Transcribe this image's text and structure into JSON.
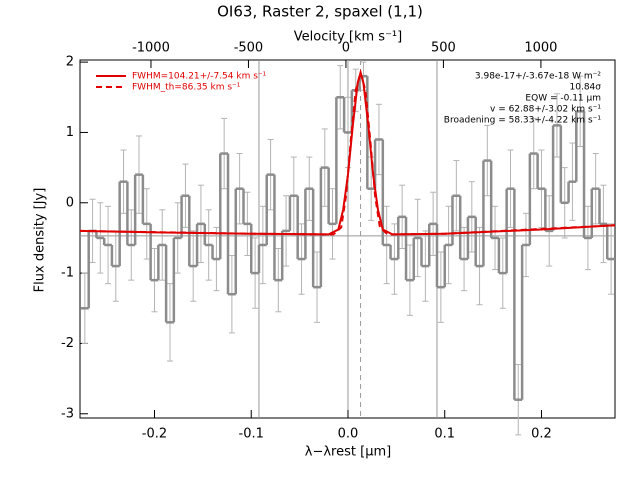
{
  "chart_data": {
    "type": "line",
    "title": "OI63, Raster 2, spaxel (1,1)",
    "xlabel": "λ−λrest [μm]",
    "ylabel": "Flux density [Jy]",
    "x2label": "Velocity [km s⁻¹]",
    "xlim": [
      -0.277,
      0.276
    ],
    "ylim": [
      -3.06,
      2.03
    ],
    "x2lim": [
      -1364,
      1380
    ],
    "xticks": [
      -0.2,
      -0.1,
      {
        "value": 0,
        "label": "0.0"
      },
      0.1,
      0.2
    ],
    "yticks": [
      -3,
      -2,
      -1,
      0,
      1,
      2
    ],
    "x2ticks": [
      -1000,
      -500,
      0,
      500,
      1000
    ],
    "vlines": [
      -0.092,
      0,
      0.092
    ],
    "dashed_vline": 0.013,
    "hline": -0.47,
    "annotations": [
      "3.98e-17+/-3.67e-18 W m⁻²",
      "10.84σ",
      "EQW = -0.11 μm",
      "v = 62.88+/-3.02 km s⁻¹",
      "Broadening = 58.33+/-4.22 km s⁻¹"
    ],
    "spectrum": {
      "color": "#8c8c8c",
      "error_color": "#b4b4b4",
      "bin_width": 0.008,
      "x": [
        -0.272,
        -0.264,
        -0.256,
        -0.248,
        -0.24,
        -0.232,
        -0.224,
        -0.216,
        -0.208,
        -0.2,
        -0.192,
        -0.184,
        -0.176,
        -0.168,
        -0.16,
        -0.152,
        -0.144,
        -0.136,
        -0.128,
        -0.12,
        -0.112,
        -0.104,
        -0.096,
        -0.088,
        -0.08,
        -0.072,
        -0.064,
        -0.056,
        -0.048,
        -0.04,
        -0.032,
        -0.024,
        -0.016,
        -0.008,
        0,
        0.008,
        0.016,
        0.024,
        0.032,
        0.04,
        0.048,
        0.056,
        0.064,
        0.072,
        0.08,
        0.088,
        0.096,
        0.104,
        0.112,
        0.12,
        0.128,
        0.136,
        0.144,
        0.152,
        0.16,
        0.168,
        0.176,
        0.184,
        0.192,
        0.2,
        0.208,
        0.216,
        0.224,
        0.232,
        0.24,
        0.248,
        0.256,
        0.264,
        0.272
      ],
      "values": [
        -1.5,
        -0.4,
        -0.5,
        -0.6,
        -0.9,
        0.3,
        -0.6,
        0.4,
        -0.3,
        -1.1,
        -0.6,
        -1.7,
        -0.5,
        0.1,
        -0.9,
        -0.3,
        -0.6,
        -0.8,
        0.7,
        -1.3,
        0.2,
        -0.3,
        -1.0,
        -0.6,
        0.4,
        -1.1,
        -0.4,
        0.1,
        -0.8,
        0.2,
        -1.2,
        0.5,
        -0.3,
        1.5,
        1.0,
        1.6,
        1.8,
        0.2,
        0.9,
        -0.6,
        -0.8,
        -0.2,
        -1.1,
        -0.5,
        -0.9,
        -0.3,
        -1.2,
        -0.6,
        0.1,
        -0.8,
        -0.2,
        -0.9,
        0.6,
        -0.5,
        -1.0,
        0.2,
        -2.8,
        -0.6,
        0.7,
        0.2,
        -0.4,
        1.1,
        0.0,
        0.3,
        1.3,
        -0.5,
        0.2,
        -0.3,
        -0.8
      ],
      "errors": [
        0.5,
        0.45,
        0.5,
        0.55,
        0.5,
        0.45,
        0.5,
        0.55,
        0.5,
        0.45,
        0.5,
        0.55,
        0.5,
        0.45,
        0.5,
        0.55,
        0.5,
        0.45,
        0.5,
        0.55,
        0.5,
        0.45,
        0.5,
        0.55,
        0.5,
        0.45,
        0.5,
        0.55,
        0.5,
        0.45,
        0.5,
        0.55,
        0.5,
        0.45,
        0.5,
        0.3,
        0.2,
        0.45,
        0.5,
        0.55,
        0.5,
        0.45,
        0.5,
        0.55,
        0.5,
        0.45,
        0.5,
        0.55,
        0.5,
        0.45,
        0.5,
        0.55,
        0.5,
        0.45,
        0.5,
        0.55,
        0.5,
        0.45,
        0.5,
        0.55,
        0.5,
        0.45,
        0.5,
        0.55,
        0.5,
        0.45,
        0.5,
        0.55,
        0.5
      ]
    },
    "series": [
      {
        "name": "FWHM=104.21+/-7.54 km s⁻¹",
        "color": "#e00000",
        "dash": false,
        "x": [
          -0.277,
          -0.2,
          -0.1,
          -0.02,
          -0.01,
          -0.005,
          0,
          0.005,
          0.01,
          0.013,
          0.016,
          0.021,
          0.026,
          0.031,
          0.036,
          0.046,
          0.1,
          0.2,
          0.276
        ],
        "values": [
          -0.4,
          -0.42,
          -0.44,
          -0.45,
          -0.38,
          -0.1,
          0.4,
          1.1,
          1.7,
          1.85,
          1.7,
          1.1,
          0.4,
          -0.1,
          -0.38,
          -0.45,
          -0.44,
          -0.38,
          -0.32
        ]
      },
      {
        "name": "FWHM_th=86.35 km s⁻¹",
        "color": "#e00000",
        "dash": true,
        "x": [
          -0.277,
          -0.1,
          -0.015,
          -0.007,
          -0.002,
          0.003,
          0.008,
          0.013,
          0.018,
          0.023,
          0.028,
          0.033,
          0.041,
          0.1,
          0.276
        ],
        "values": [
          -0.4,
          -0.44,
          -0.45,
          -0.35,
          0.1,
          0.9,
          1.6,
          1.85,
          1.6,
          0.9,
          0.1,
          -0.35,
          -0.45,
          -0.44,
          -0.32
        ]
      }
    ]
  }
}
